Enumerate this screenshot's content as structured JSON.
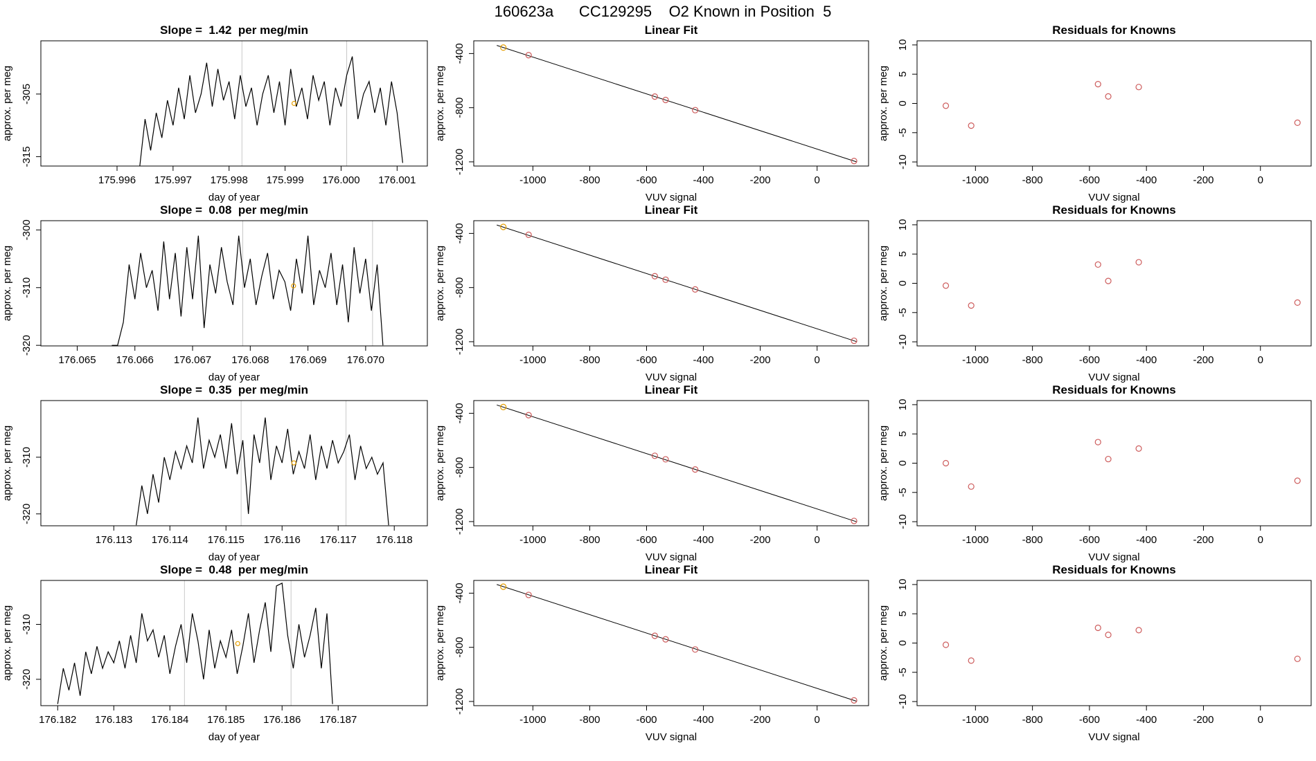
{
  "title": "160623a      CC129295    O2 Known in Position  5",
  "chart_data": [
    {
      "type": "line",
      "title": "Slope =  1.42  per meg/min",
      "xlabel": "day of year",
      "ylabel": "approx. per meg",
      "xlim": [
        175.99464,
        176.00154
      ],
      "ylim": [
        -316.5,
        -296.5
      ],
      "xticks": [
        175.996,
        175.997,
        175.998,
        175.999,
        {
          "value": 176,
          "label": "176.000"
        },
        176.001
      ],
      "yticks": [
        -315,
        -305
      ],
      "series": [
        {
          "color": "#000000",
          "x": [
            175.9964,
            175.9965,
            175.9966,
            175.9967,
            175.9968,
            175.9969,
            175.997,
            175.9971,
            175.9972,
            175.9973,
            175.9974,
            175.9975,
            175.9976,
            175.9977,
            175.9978,
            175.9979,
            175.998,
            175.9981,
            175.9982,
            175.9983,
            175.9984,
            175.9985,
            175.9986,
            175.9987,
            175.9988,
            175.9989,
            175.999,
            175.9991,
            175.9992,
            175.9993,
            175.9994,
            175.9995,
            175.9996,
            175.9997,
            175.9998,
            175.9999,
            176,
            176.0001,
            176.0002,
            176.0003,
            176.0004,
            176.0005,
            176.0006,
            176.0007,
            176.0008,
            176.0009,
            176.001,
            176.0011
          ],
          "values": [
            -317,
            -309,
            -314,
            -308,
            -312,
            -306,
            -310,
            -304,
            -309,
            -302,
            -308,
            -305,
            -300,
            -307,
            -301,
            -306,
            -303,
            -309,
            -302,
            -307,
            -304,
            -310,
            -305,
            -302,
            -308,
            -303,
            -310,
            -301,
            -307,
            -304,
            -309,
            -302,
            -306,
            -303,
            -310,
            -304,
            -307,
            -302,
            -299,
            -309,
            -305,
            -303,
            -308,
            -304,
            -310,
            -303,
            -308,
            -316
          ]
        }
      ],
      "vlines": [
        175.99823,
        176.0001
      ],
      "vline_color": "#c8c8c8",
      "highlight": {
        "x": 175.99916,
        "y": -306.5,
        "color": "#e69f00"
      }
    },
    {
      "type": "scatter",
      "title": "Linear Fit",
      "xlabel": "VUV signal",
      "ylabel": "approx. per meg",
      "xlim": [
        -1208,
        181
      ],
      "ylim": [
        -1231,
        -306
      ],
      "xticks": [
        -1000,
        -800,
        -600,
        -400,
        -200,
        0
      ],
      "yticks": [
        -1200,
        -800,
        -400
      ],
      "series": [
        {
          "style": "line",
          "color": "#000000",
          "x": [
            -1127,
            140
          ],
          "values": [
            -340,
            -1201
          ]
        },
        {
          "style": "points",
          "color": "#e69f00",
          "x": [
            -1104
          ],
          "values": [
            -356
          ]
        },
        {
          "style": "points",
          "color": "#cd5c5c",
          "x": [
            -1015,
            -571,
            -533,
            -429,
            130
          ],
          "values": [
            -412,
            -718,
            -743,
            -818,
            -1194
          ]
        }
      ]
    },
    {
      "type": "scatter",
      "title": "Residuals for Knowns",
      "xlabel": "VUV signal",
      "ylabel": "approx. per meg",
      "xlim": [
        -1205,
        178
      ],
      "ylim": [
        -10.7,
        10.7
      ],
      "xticks": [
        -1000,
        -800,
        -600,
        -400,
        -200,
        0
      ],
      "yticks": [
        -10,
        -5,
        0,
        5,
        10
      ],
      "series": [
        {
          "style": "points",
          "color": "#cd5c5c",
          "x": [
            -1104,
            -1015,
            -570,
            -534,
            -427,
            130
          ],
          "values": [
            -0.4,
            -3.8,
            3.3,
            1.2,
            2.8,
            -3.3
          ]
        }
      ]
    },
    {
      "type": "line",
      "title": "Slope =  0.08  per meg/min",
      "xlabel": "day of year",
      "ylabel": "approx. per meg",
      "xlim": [
        176.06437,
        176.07107
      ],
      "ylim": [
        -320.1,
        -298.4
      ],
      "xticks": [
        176.065,
        176.066,
        176.067,
        176.068,
        176.069,
        {
          "value": 176.07,
          "label": "176.070"
        }
      ],
      "yticks": [
        -320,
        -310,
        -300
      ],
      "series": [
        {
          "color": "#000000",
          "x": [
            176.0656,
            176.0657,
            176.0658,
            176.0659,
            176.066,
            176.0661,
            176.0662,
            176.0663,
            176.0664,
            176.0665,
            176.0666,
            176.0667,
            176.0668,
            176.0669,
            176.067,
            176.0671,
            176.0672,
            176.0673,
            176.0674,
            176.0675,
            176.0676,
            176.0677,
            176.0678,
            176.0679,
            176.068,
            176.0681,
            176.0682,
            176.0683,
            176.0684,
            176.0685,
            176.0686,
            176.0687,
            176.0688,
            176.0689,
            176.069,
            176.0691,
            176.0692,
            176.0693,
            176.0694,
            176.0695,
            176.0696,
            176.0697,
            176.0698,
            176.0699,
            176.07,
            176.0701,
            176.0702,
            176.0703
          ],
          "values": [
            -320,
            -320,
            -316,
            -306,
            -312,
            -304,
            -310,
            -307,
            -314,
            -302,
            -312,
            -304,
            -315,
            -303,
            -312,
            -301,
            -317,
            -306,
            -311,
            -303,
            -309,
            -313,
            -301,
            -310,
            -305,
            -313,
            -308,
            -304,
            -312,
            -307,
            -309,
            -314,
            -305,
            -311,
            -301,
            -313,
            -307,
            -310,
            -304,
            -313,
            -306,
            -316,
            -303,
            -311,
            -305,
            -314,
            -306,
            -320
          ]
        }
      ],
      "vlines": [
        176.06787,
        176.07012
      ],
      "vline_color": "#c8c8c8",
      "highlight": {
        "x": 176.06875,
        "y": -309.7,
        "color": "#e69f00"
      }
    },
    {
      "type": "scatter",
      "title": "Linear Fit",
      "xlabel": "VUV signal",
      "ylabel": "approx. per meg",
      "xlim": [
        -1208,
        181
      ],
      "ylim": [
        -1231,
        -306
      ],
      "xticks": [
        -1000,
        -800,
        -600,
        -400,
        -200,
        0
      ],
      "yticks": [
        -1200,
        -800,
        -400
      ],
      "series": [
        {
          "style": "line",
          "color": "#000000",
          "x": [
            -1127,
            140
          ],
          "values": [
            -338,
            -1200
          ]
        },
        {
          "style": "points",
          "color": "#e69f00",
          "x": [
            -1104
          ],
          "values": [
            -352
          ]
        },
        {
          "style": "points",
          "color": "#cd5c5c",
          "x": [
            -1015,
            -571,
            -533,
            -429,
            130
          ],
          "values": [
            -410,
            -716,
            -742,
            -814,
            -1193
          ]
        }
      ]
    },
    {
      "type": "scatter",
      "title": "Residuals for Knowns",
      "xlabel": "VUV signal",
      "ylabel": "approx. per meg",
      "xlim": [
        -1205,
        178
      ],
      "ylim": [
        -10.7,
        10.7
      ],
      "xticks": [
        -1000,
        -800,
        -600,
        -400,
        -200,
        0
      ],
      "yticks": [
        -10,
        -5,
        0,
        5,
        10
      ],
      "series": [
        {
          "style": "points",
          "color": "#cd5c5c",
          "x": [
            -1104,
            -1015,
            -570,
            -534,
            -427,
            130
          ],
          "values": [
            -0.4,
            -3.8,
            3.2,
            0.4,
            3.6,
            -3.3
          ]
        }
      ]
    },
    {
      "type": "line",
      "title": "Slope =  0.35  per meg/min",
      "xlabel": "day of year",
      "ylabel": "approx. per meg",
      "xlim": [
        176.1117,
        176.11859
      ],
      "ylim": [
        -322.1,
        -300
      ],
      "xticks": [
        176.113,
        176.114,
        176.115,
        176.116,
        176.117,
        176.118
      ],
      "yticks": [
        -320,
        -310
      ],
      "series": [
        {
          "color": "#000000",
          "x": [
            176.1134,
            176.1135,
            176.1136,
            176.1137,
            176.1138,
            176.1139,
            176.114,
            176.1141,
            176.1142,
            176.1143,
            176.1144,
            176.1145,
            176.1146,
            176.1147,
            176.1148,
            176.1149,
            176.115,
            176.1151,
            176.1152,
            176.1153,
            176.1154,
            176.1155,
            176.1156,
            176.1157,
            176.1158,
            176.1159,
            176.116,
            176.1161,
            176.1162,
            176.1163,
            176.1164,
            176.1165,
            176.1166,
            176.1167,
            176.1168,
            176.1169,
            176.117,
            176.1171,
            176.1172,
            176.1173,
            176.1174,
            176.1175,
            176.1176,
            176.1177,
            176.1178,
            176.1179
          ],
          "values": [
            -322,
            -315,
            -320,
            -313,
            -318,
            -310,
            -314,
            -309,
            -312,
            -308,
            -311,
            -303,
            -312,
            -307,
            -310,
            -306,
            -312,
            -304,
            -313,
            -307,
            -320,
            -306,
            -311,
            -303,
            -314,
            -308,
            -311,
            -305,
            -313,
            -309,
            -312,
            -306,
            -314,
            -308,
            -312,
            -307,
            -311,
            -309,
            -306,
            -314,
            -308,
            -312,
            -310,
            -313,
            -311,
            -322
          ]
        }
      ],
      "vlines": [
        176.11527,
        176.11714
      ],
      "vline_color": "#c8c8c8",
      "highlight": {
        "x": 176.11621,
        "y": -311,
        "color": "#e69f00"
      }
    },
    {
      "type": "scatter",
      "title": "Linear Fit",
      "xlabel": "VUV signal",
      "ylabel": "approx. per meg",
      "xlim": [
        -1208,
        181
      ],
      "ylim": [
        -1231,
        -306
      ],
      "xticks": [
        -1000,
        -800,
        -600,
        -400,
        -200,
        0
      ],
      "yticks": [
        -1200,
        -800,
        -400
      ],
      "series": [
        {
          "style": "line",
          "color": "#000000",
          "x": [
            -1127,
            140
          ],
          "values": [
            -339,
            -1202
          ]
        },
        {
          "style": "points",
          "color": "#e69f00",
          "x": [
            -1104
          ],
          "values": [
            -354
          ]
        },
        {
          "style": "points",
          "color": "#cd5c5c",
          "x": [
            -1015,
            -571,
            -533,
            -429,
            130
          ],
          "values": [
            -414,
            -714,
            -740,
            -815,
            -1195
          ]
        }
      ]
    },
    {
      "type": "scatter",
      "title": "Residuals for Knowns",
      "xlabel": "VUV signal",
      "ylabel": "approx. per meg",
      "xlim": [
        -1205,
        178
      ],
      "ylim": [
        -10.7,
        10.7
      ],
      "xticks": [
        -1000,
        -800,
        -600,
        -400,
        -200,
        0
      ],
      "yticks": [
        -10,
        -5,
        0,
        5,
        10
      ],
      "series": [
        {
          "style": "points",
          "color": "#cd5c5c",
          "x": [
            -1104,
            -1015,
            -570,
            -534,
            -427,
            130
          ],
          "values": [
            0,
            -4,
            3.6,
            0.7,
            2.5,
            -3
          ]
        }
      ]
    },
    {
      "type": "line",
      "title": "Slope =  0.48  per meg/min",
      "xlabel": "day of year",
      "ylabel": "approx. per meg",
      "xlim": [
        176.1817,
        176.18859
      ],
      "ylim": [
        -324.8,
        -302
      ],
      "xticks": [
        176.182,
        176.183,
        176.184,
        176.185,
        176.186,
        176.187
      ],
      "yticks": [
        -320,
        -310
      ],
      "series": [
        {
          "color": "#000000",
          "x": [
            176.182,
            176.1821,
            176.1822,
            176.1823,
            176.1824,
            176.1825,
            176.1826,
            176.1827,
            176.1828,
            176.1829,
            176.183,
            176.1831,
            176.1832,
            176.1833,
            176.1834,
            176.1835,
            176.1836,
            176.1837,
            176.1838,
            176.1839,
            176.184,
            176.1841,
            176.1842,
            176.1843,
            176.1844,
            176.1845,
            176.1846,
            176.1847,
            176.1848,
            176.1849,
            176.185,
            176.1851,
            176.1852,
            176.1853,
            176.1854,
            176.1855,
            176.1856,
            176.1857,
            176.1858,
            176.1859,
            176.186,
            176.1861,
            176.1862,
            176.1863,
            176.1864,
            176.1865,
            176.1866,
            176.1867,
            176.1868,
            176.1869
          ],
          "values": [
            -324.5,
            -318,
            -322,
            -317,
            -323,
            -315,
            -319,
            -314,
            -318,
            -315,
            -317,
            -313,
            -318,
            -312,
            -317,
            -308,
            -313,
            -311,
            -316,
            -312,
            -319,
            -314,
            -310,
            -317,
            -308,
            -313,
            -320,
            -311,
            -318,
            -313,
            -316,
            -311,
            -319,
            -314,
            -308,
            -317,
            -311,
            -306,
            -315,
            -303,
            -302.5,
            -312,
            -318,
            -310,
            -316,
            -312,
            -307,
            -318,
            -308,
            -324.5
          ]
        }
      ],
      "vlines": [
        176.18426,
        176.18616
      ],
      "vline_color": "#c8c8c8",
      "highlight": {
        "x": 176.18521,
        "y": -313.5,
        "color": "#e69f00"
      }
    },
    {
      "type": "scatter",
      "title": "Linear Fit",
      "xlabel": "VUV signal",
      "ylabel": "approx. per meg",
      "xlim": [
        -1208,
        181
      ],
      "ylim": [
        -1231,
        -306
      ],
      "xticks": [
        -1000,
        -800,
        -600,
        -400,
        -200,
        0
      ],
      "yticks": [
        -1200,
        -800,
        -400
      ],
      "series": [
        {
          "style": "line",
          "color": "#000000",
          "x": [
            -1127,
            140
          ],
          "values": [
            -336,
            -1199
          ]
        },
        {
          "style": "points",
          "color": "#e69f00",
          "x": [
            -1104
          ],
          "values": [
            -352
          ]
        },
        {
          "style": "points",
          "color": "#cd5c5c",
          "x": [
            -1015,
            -571,
            -533,
            -429,
            130
          ],
          "values": [
            -413,
            -715,
            -741,
            -816,
            -1192
          ]
        }
      ]
    },
    {
      "type": "scatter",
      "title": "Residuals for Knowns",
      "xlabel": "VUV signal",
      "ylabel": "approx. per meg",
      "xlim": [
        -1205,
        178
      ],
      "ylim": [
        -10.7,
        10.7
      ],
      "xticks": [
        -1000,
        -800,
        -600,
        -400,
        -200,
        0
      ],
      "yticks": [
        -10,
        -5,
        0,
        5,
        10
      ],
      "series": [
        {
          "style": "points",
          "color": "#cd5c5c",
          "x": [
            -1104,
            -1015,
            -570,
            -534,
            -427,
            130
          ],
          "values": [
            -0.3,
            -3,
            2.6,
            1.4,
            2.2,
            -2.7
          ]
        }
      ]
    }
  ]
}
